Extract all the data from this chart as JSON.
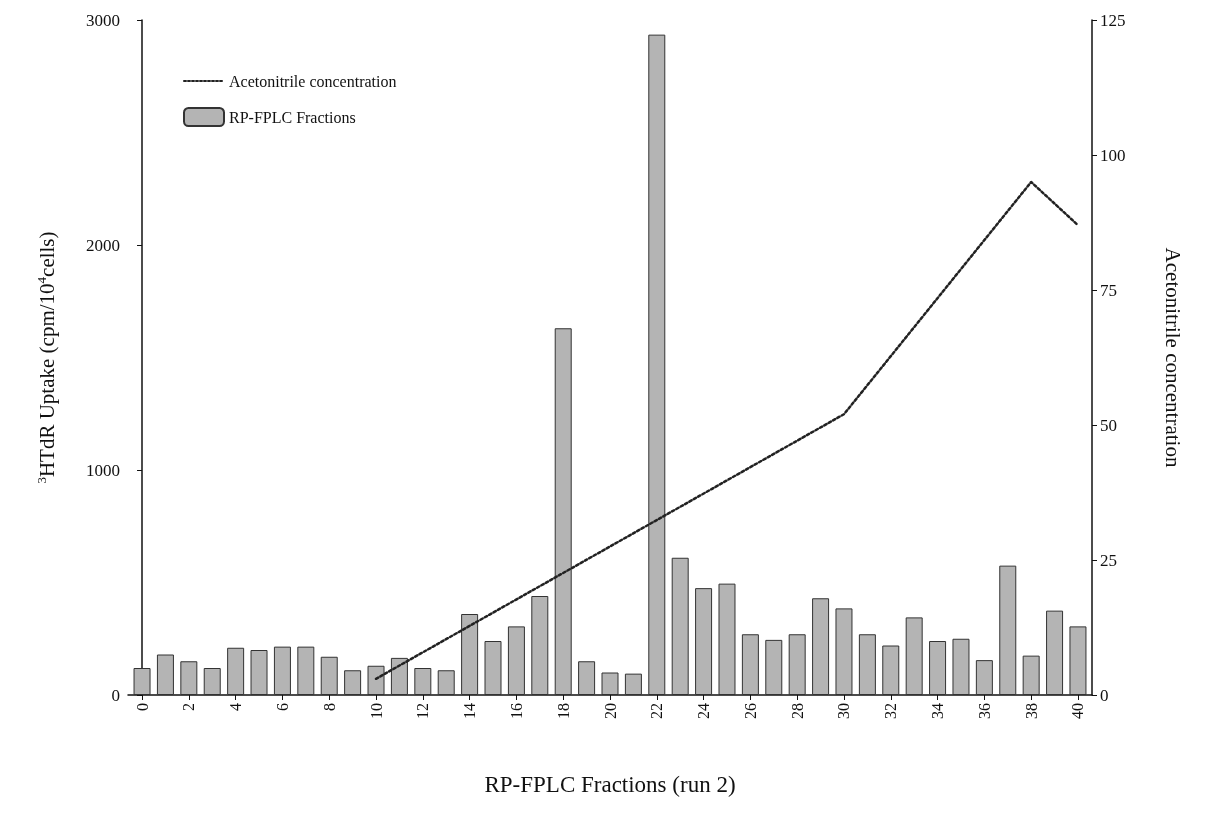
{
  "chart_data": {
    "type": "bar",
    "xlabel": "RP-FPLC Fractions (run 2)",
    "ylabel": "$^{3}$HTdR Uptake (cpm/10$^{4}$cells)",
    "y2label": "Acetonitrile concentration",
    "x": [
      0,
      1,
      2,
      3,
      4,
      5,
      6,
      7,
      8,
      9,
      10,
      11,
      12,
      13,
      14,
      15,
      16,
      17,
      18,
      19,
      20,
      21,
      22,
      23,
      24,
      25,
      26,
      27,
      28,
      29,
      30,
      31,
      32,
      33,
      34,
      35,
      36,
      37,
      38,
      39,
      40
    ],
    "series": [
      {
        "name": "RP-FPLC Fractions",
        "color": "#b4b4b4",
        "values": [
          120,
          180,
          150,
          120,
          210,
          200,
          215,
          215,
          170,
          110,
          130,
          165,
          120,
          110,
          360,
          240,
          305,
          440,
          1630,
          150,
          100,
          95,
          2935,
          610,
          475,
          495,
          270,
          245,
          270,
          430,
          385,
          270,
          220,
          345,
          240,
          250,
          155,
          575,
          175,
          375,
          305
        ]
      },
      {
        "name": "Acetonitrile concentration",
        "type": "line",
        "axis": "y2",
        "color": "#222222",
        "line_style": "dotted",
        "marker": "none",
        "x": [
          10,
          30,
          38,
          40
        ],
        "values": [
          3,
          52,
          95,
          87
        ]
      }
    ],
    "xlim": [
      -0.6,
      40.6
    ],
    "xticks": [
      0,
      2,
      4,
      6,
      8,
      10,
      12,
      14,
      16,
      18,
      20,
      22,
      24,
      26,
      28,
      30,
      32,
      34,
      36,
      38,
      40
    ],
    "ylim": [
      0,
      3000
    ],
    "yticks": [
      0,
      1000,
      2000,
      3000
    ],
    "y2lim": [
      0,
      125
    ],
    "y2ticks": [
      0,
      25,
      50,
      75,
      100,
      125
    ],
    "grid": false,
    "legend": "top left"
  }
}
